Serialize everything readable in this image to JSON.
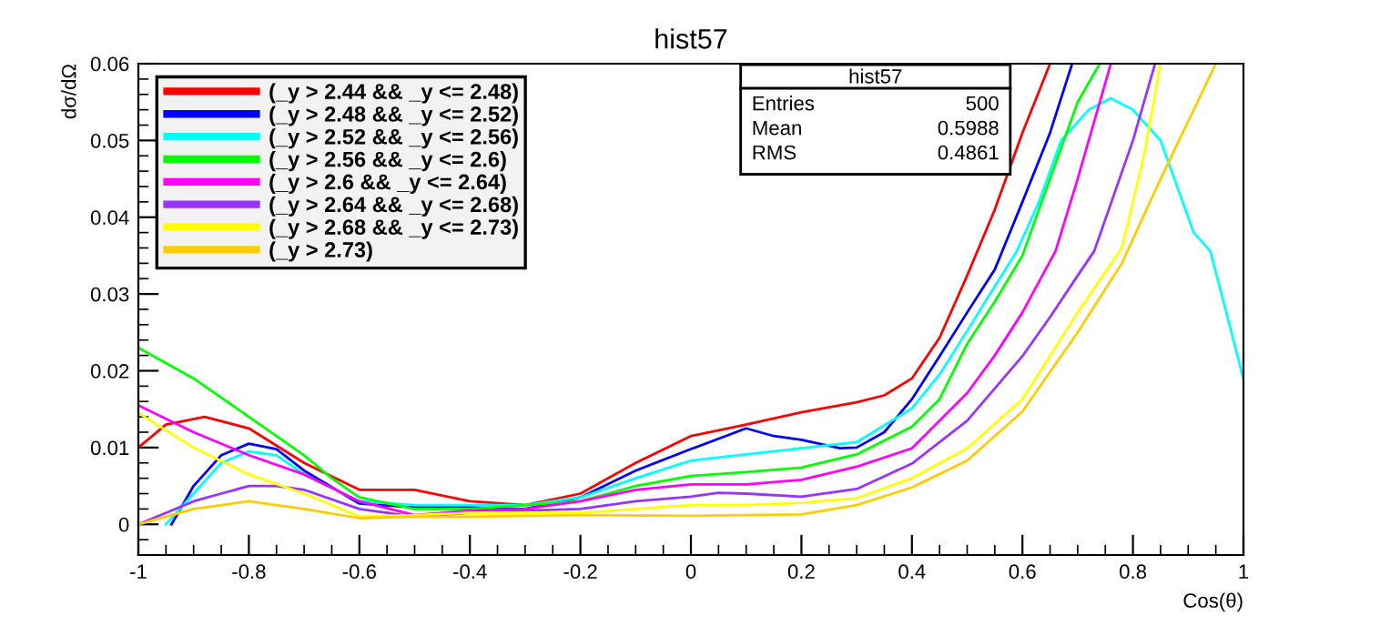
{
  "chart_data": {
    "type": "line",
    "title": "hist57",
    "xlabel": "Cos(θ)",
    "ylabel": "dσ/dΩ",
    "xlim": [
      -1,
      1
    ],
    "ylim": [
      -0.004,
      0.06
    ],
    "xticks": [
      -1,
      -0.8,
      -0.6,
      -0.4,
      -0.2,
      0,
      0.2,
      0.4,
      0.6,
      0.8,
      1
    ],
    "yticks": [
      0,
      0.01,
      0.02,
      0.03,
      0.04,
      0.05,
      0.06
    ],
    "grid": false,
    "legend": "top left",
    "marker": "none",
    "line_style": "solid",
    "annotations": [
      "hist57",
      "Entries",
      "500",
      "Mean",
      "0.5988",
      "RMS",
      "0.4861"
    ],
    "series": [
      {
        "name": "(_y > 2.44 && _y <= 2.48)",
        "color": "#ff0000",
        "x": [
          -1,
          -0.95,
          -0.88,
          -0.8,
          -0.7,
          -0.6,
          -0.5,
          -0.4,
          -0.3,
          -0.2,
          -0.1,
          0,
          0.1,
          0.2,
          0.3,
          0.35,
          0.4,
          0.45,
          0.5,
          0.55,
          0.6,
          0.65
        ],
        "values": [
          0.01,
          0.013,
          0.014,
          0.0125,
          0.008,
          0.0045,
          0.0045,
          0.003,
          0.0025,
          0.004,
          0.008,
          0.0115,
          0.013,
          0.0146,
          0.0159,
          0.0168,
          0.019,
          0.0243,
          0.0324,
          0.041,
          0.051,
          0.06
        ]
      },
      {
        "name": "(_y > 2.48 && _y <= 2.52)",
        "color": "#0000ff",
        "x": [
          -0.94,
          -0.9,
          -0.85,
          -0.8,
          -0.75,
          -0.7,
          -0.6,
          -0.5,
          -0.4,
          -0.3,
          -0.2,
          -0.1,
          0,
          0.1,
          0.15,
          0.2,
          0.27,
          0.3,
          0.35,
          0.4,
          0.45,
          0.5,
          0.55,
          0.6,
          0.65,
          0.69
        ],
        "values": [
          0,
          0.005,
          0.009,
          0.0105,
          0.0098,
          0.007,
          0.0027,
          0.0022,
          0.0022,
          0.002,
          0.0035,
          0.007,
          0.0098,
          0.0125,
          0.0115,
          0.011,
          0.0099,
          0.01,
          0.012,
          0.0163,
          0.0219,
          0.0276,
          0.0332,
          0.042,
          0.051,
          0.06
        ]
      },
      {
        "name": "(_y > 2.52 && _y <= 2.56)",
        "color": "#00ffff",
        "x": [
          -0.95,
          -0.9,
          -0.85,
          -0.8,
          -0.75,
          -0.7,
          -0.6,
          -0.5,
          -0.4,
          -0.3,
          -0.2,
          -0.1,
          0,
          0.1,
          0.2,
          0.3,
          0.4,
          0.45,
          0.5,
          0.55,
          0.59,
          0.63,
          0.67,
          0.72,
          0.76,
          0.8,
          0.85,
          0.91,
          0.94,
          1
        ],
        "values": [
          0,
          0.004,
          0.008,
          0.0095,
          0.009,
          0.0065,
          0.003,
          0.0025,
          0.0025,
          0.0025,
          0.0035,
          0.006,
          0.0083,
          0.0091,
          0.0099,
          0.0107,
          0.0151,
          0.0195,
          0.0252,
          0.031,
          0.0356,
          0.042,
          0.05,
          0.054,
          0.0555,
          0.054,
          0.05,
          0.038,
          0.0356,
          0.019
        ]
      },
      {
        "name": "(_y > 2.56 && _y <= 2.6)",
        "color": "#00ff00",
        "x": [
          -1,
          -0.9,
          -0.8,
          -0.7,
          -0.65,
          -0.6,
          -0.5,
          -0.4,
          -0.3,
          -0.2,
          -0.1,
          0,
          0.1,
          0.2,
          0.3,
          0.4,
          0.45,
          0.5,
          0.55,
          0.6,
          0.65,
          0.7,
          0.74
        ],
        "values": [
          0.023,
          0.019,
          0.014,
          0.009,
          0.006,
          0.0035,
          0.002,
          0.002,
          0.0025,
          0.003,
          0.005,
          0.0063,
          0.0068,
          0.0074,
          0.0091,
          0.0127,
          0.0163,
          0.0235,
          0.029,
          0.035,
          0.045,
          0.055,
          0.06
        ]
      },
      {
        "name": "(_y > 2.6 && _y <= 2.64)",
        "color": "#ff00ff",
        "x": [
          -1,
          -0.9,
          -0.8,
          -0.7,
          -0.6,
          -0.5,
          -0.4,
          -0.3,
          -0.2,
          -0.1,
          0,
          0.1,
          0.2,
          0.3,
          0.4,
          0.5,
          0.55,
          0.6,
          0.66,
          0.7,
          0.76
        ],
        "values": [
          0.0155,
          0.012,
          0.009,
          0.0065,
          0.003,
          0.0012,
          0.0018,
          0.002,
          0.003,
          0.0045,
          0.0052,
          0.0052,
          0.0058,
          0.0075,
          0.0099,
          0.0171,
          0.022,
          0.0276,
          0.0356,
          0.045,
          0.06
        ]
      },
      {
        "name": "(_y > 2.64 && _y <= 2.68)",
        "color": "#9933ff",
        "x": [
          -1,
          -0.9,
          -0.8,
          -0.75,
          -0.7,
          -0.6,
          -0.5,
          -0.4,
          -0.3,
          -0.2,
          -0.1,
          0,
          0.05,
          0.1,
          0.2,
          0.3,
          0.4,
          0.5,
          0.6,
          0.65,
          0.7,
          0.73,
          0.8,
          0.84
        ],
        "values": [
          0,
          0.003,
          0.005,
          0.005,
          0.0045,
          0.002,
          0.001,
          0.0015,
          0.0018,
          0.002,
          0.003,
          0.0036,
          0.0041,
          0.004,
          0.0036,
          0.0046,
          0.0079,
          0.0135,
          0.0219,
          0.027,
          0.0324,
          0.0356,
          0.05,
          0.06
        ]
      },
      {
        "name": "(_y > 2.68 && _y <= 2.73)",
        "color": "#ffff00",
        "x": [
          -1,
          -0.9,
          -0.8,
          -0.7,
          -0.6,
          -0.5,
          -0.4,
          -0.3,
          -0.2,
          -0.1,
          0,
          0.1,
          0.2,
          0.3,
          0.4,
          0.5,
          0.6,
          0.7,
          0.78,
          0.82,
          0.85
        ],
        "values": [
          0.0145,
          0.01,
          0.0065,
          0.004,
          0.001,
          0.0012,
          0.0015,
          0.0015,
          0.0015,
          0.002,
          0.0025,
          0.0025,
          0.0028,
          0.0034,
          0.006,
          0.0099,
          0.0163,
          0.0276,
          0.036,
          0.048,
          0.06
        ]
      },
      {
        "name": "(_y > 2.73)",
        "color": "#ffcc00",
        "x": [
          -1,
          -0.9,
          -0.8,
          -0.7,
          -0.6,
          -0.5,
          -0.4,
          -0.2,
          0,
          0.1,
          0.2,
          0.3,
          0.4,
          0.5,
          0.6,
          0.7,
          0.78,
          0.85,
          0.95
        ],
        "values": [
          0,
          0.002,
          0.003,
          0.002,
          0.0008,
          0.001,
          0.001,
          0.0012,
          0.0011,
          0.0012,
          0.0013,
          0.0025,
          0.0048,
          0.0083,
          0.0147,
          0.025,
          0.034,
          0.045,
          0.06
        ]
      }
    ]
  }
}
